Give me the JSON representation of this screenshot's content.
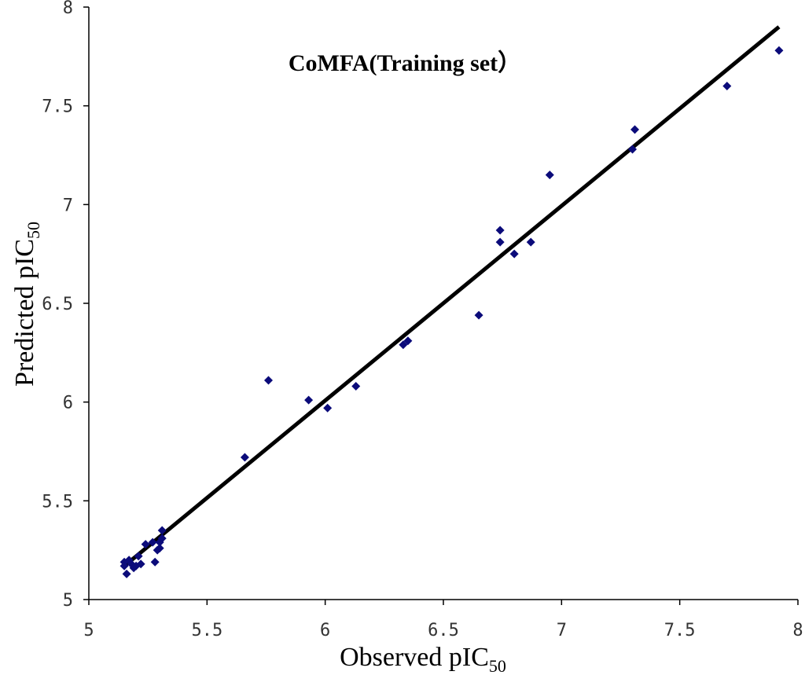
{
  "chart_data": {
    "type": "scatter",
    "title": "CoMFA(Training set）",
    "xlabel": "Observed pIC",
    "xlabel_subscript": "50",
    "ylabel": "Predicted pIC",
    "ylabel_subscript": "50",
    "xlim": [
      5,
      8
    ],
    "ylim": [
      5,
      8
    ],
    "xticks": [
      5,
      5.5,
      6,
      6.5,
      7,
      7.5,
      8
    ],
    "yticks": [
      5,
      5.5,
      6,
      6.5,
      7,
      7.5,
      8
    ],
    "x_tick_labels": [
      "5",
      "5.5",
      "6",
      "6.5",
      "7",
      "7.5",
      "8"
    ],
    "y_tick_labels": [
      "5",
      "5.5",
      "6",
      "6.5",
      "7",
      "7.5",
      "8"
    ],
    "grid": false,
    "legend": "none",
    "marker_color": "#0b0b7a",
    "line_color": "#000000",
    "trend_line": {
      "x": [
        5.15,
        7.92
      ],
      "y": [
        5.17,
        7.9
      ]
    },
    "points": [
      {
        "x": 5.15,
        "y": 5.19
      },
      {
        "x": 5.15,
        "y": 5.17
      },
      {
        "x": 5.16,
        "y": 5.13
      },
      {
        "x": 5.17,
        "y": 5.2
      },
      {
        "x": 5.18,
        "y": 5.18
      },
      {
        "x": 5.19,
        "y": 5.16
      },
      {
        "x": 5.2,
        "y": 5.17
      },
      {
        "x": 5.21,
        "y": 5.22
      },
      {
        "x": 5.22,
        "y": 5.18
      },
      {
        "x": 5.24,
        "y": 5.28
      },
      {
        "x": 5.27,
        "y": 5.29
      },
      {
        "x": 5.28,
        "y": 5.19
      },
      {
        "x": 5.29,
        "y": 5.25
      },
      {
        "x": 5.3,
        "y": 5.29
      },
      {
        "x": 5.3,
        "y": 5.26
      },
      {
        "x": 5.31,
        "y": 5.35
      },
      {
        "x": 5.31,
        "y": 5.31
      },
      {
        "x": 5.66,
        "y": 5.72
      },
      {
        "x": 5.76,
        "y": 6.11
      },
      {
        "x": 5.93,
        "y": 6.01
      },
      {
        "x": 6.01,
        "y": 5.97
      },
      {
        "x": 6.13,
        "y": 6.08
      },
      {
        "x": 6.33,
        "y": 6.29
      },
      {
        "x": 6.35,
        "y": 6.31
      },
      {
        "x": 6.65,
        "y": 6.44
      },
      {
        "x": 6.74,
        "y": 6.87
      },
      {
        "x": 6.74,
        "y": 6.81
      },
      {
        "x": 6.8,
        "y": 6.75
      },
      {
        "x": 6.87,
        "y": 6.81
      },
      {
        "x": 6.95,
        "y": 7.15
      },
      {
        "x": 7.3,
        "y": 7.28
      },
      {
        "x": 7.31,
        "y": 7.38
      },
      {
        "x": 7.7,
        "y": 7.6
      },
      {
        "x": 7.92,
        "y": 7.78
      }
    ]
  }
}
